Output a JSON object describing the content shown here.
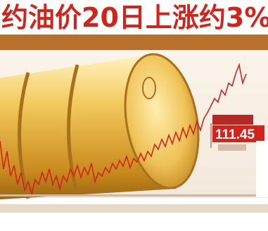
{
  "header": {
    "title": "约油价20日上涨约3%"
  },
  "callout": {
    "value": "111.45"
  }
}
